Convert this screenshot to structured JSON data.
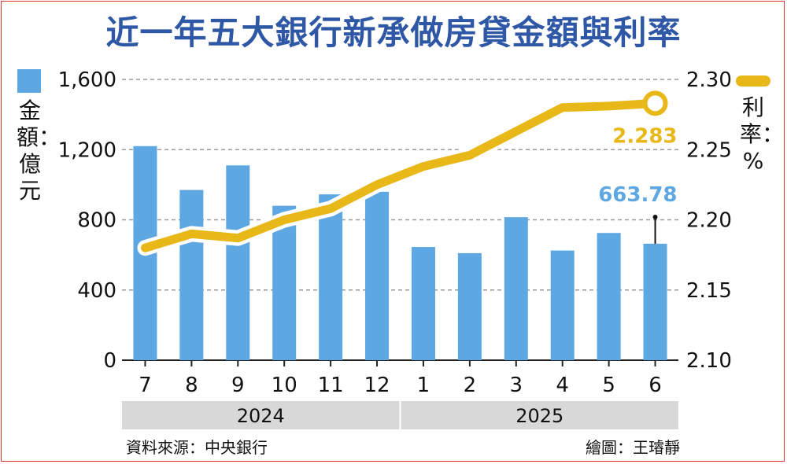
{
  "title": "近一年五大銀行新承做房貸金額與利率",
  "legend": {
    "bar_label": "金額：億元",
    "line_label": "利率：%",
    "bar_color": "#5da7e2",
    "line_color": "#e8b818"
  },
  "source": "資料來源：中央銀行",
  "credit": "繪圖：王璿靜",
  "chart_data": {
    "type": "bar",
    "title": "近一年五大銀行新承做房貸金額與利率",
    "categories": [
      "7",
      "8",
      "9",
      "10",
      "11",
      "12",
      "1",
      "2",
      "3",
      "4",
      "5",
      "6"
    ],
    "year_groups": [
      {
        "label": "2024",
        "from": 0,
        "to": 5
      },
      {
        "label": "2025",
        "from": 6,
        "to": 11
      }
    ],
    "series": [
      {
        "name": "金額：億元",
        "type": "bar",
        "axis": "left",
        "color": "#5da7e2",
        "values": [
          1220,
          970,
          1110,
          880,
          945,
          960,
          645,
          610,
          815,
          625,
          725,
          663.78
        ]
      },
      {
        "name": "利率：%",
        "type": "line",
        "axis": "right",
        "color": "#e8b818",
        "values": [
          2.18,
          2.19,
          2.187,
          2.2,
          2.208,
          2.225,
          2.238,
          2.246,
          2.263,
          2.28,
          2.281,
          2.283
        ]
      }
    ],
    "y_left": {
      "label": "金額：億元",
      "min": 0,
      "max": 1600,
      "ticks": [
        "0",
        "400",
        "800",
        "1,200",
        "1,600"
      ]
    },
    "y_right": {
      "label": "利率：%",
      "min": 2.1,
      "max": 2.3,
      "ticks": [
        "2.10",
        "2.15",
        "2.20",
        "2.25",
        "2.30"
      ]
    },
    "annotations": [
      {
        "series": 0,
        "index": 11,
        "text": "663.78",
        "color": "#5da7e2"
      },
      {
        "series": 1,
        "index": 11,
        "text": "2.283",
        "color": "#e8b818"
      }
    ],
    "grid": "horizontal-dashed",
    "legend_position": "top-corners"
  }
}
